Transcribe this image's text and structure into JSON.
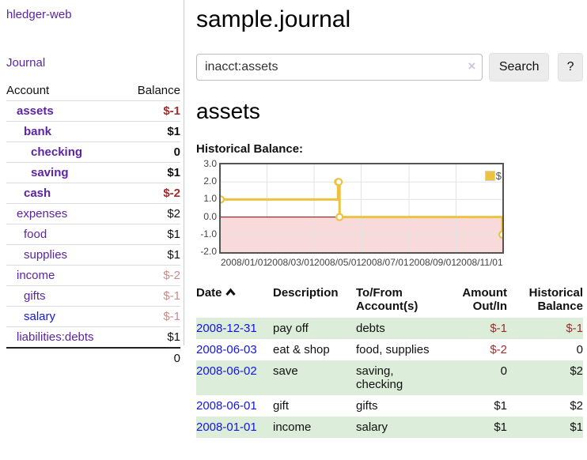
{
  "sidebar": {
    "app_title": "hledger-web",
    "journal_link": "Journal",
    "table": {
      "account_header": "Account",
      "balance_header": "Balance",
      "rows": [
        {
          "name": "assets",
          "balance": "$-1",
          "indent": 1,
          "bold": true,
          "neg": "neg"
        },
        {
          "name": "bank",
          "balance": "$1",
          "indent": 2,
          "bold": true
        },
        {
          "name": "checking",
          "balance": "0",
          "indent": 3,
          "bold": true
        },
        {
          "name": "saving",
          "balance": "$1",
          "indent": 3,
          "bold": true
        },
        {
          "name": "cash",
          "balance": "$-2",
          "indent": 2,
          "bold": true,
          "neg": "neg"
        },
        {
          "name": "expenses",
          "balance": "$2",
          "indent": 1
        },
        {
          "name": "food",
          "balance": "$1",
          "indent": 2
        },
        {
          "name": "supplies",
          "balance": "$1",
          "indent": 2
        },
        {
          "name": "income",
          "balance": "$-2",
          "indent": 1,
          "neg": "negsoft"
        },
        {
          "name": "gifts",
          "balance": "$-1",
          "indent": 2,
          "neg": "negsoft"
        },
        {
          "name": "salary",
          "balance": "$-1",
          "indent": 2,
          "neg": "negsoft",
          "blue": true
        },
        {
          "name": "liabilities:debts",
          "balance": "$1",
          "indent": 1
        }
      ],
      "total": "0"
    }
  },
  "header": {
    "title": "sample.journal"
  },
  "search": {
    "query": "inacct:assets",
    "clear_icon": "×",
    "button_label": "Search",
    "help_label": "?"
  },
  "account_page": {
    "title": "assets",
    "chart_label": "Historical Balance:"
  },
  "chart_data": {
    "type": "line",
    "line_style": "step",
    "title": "Historical Balance:",
    "series": [
      {
        "name": "$",
        "color": "#edc240",
        "points": [
          [
            "2008-01-01",
            1
          ],
          [
            "2008-06-01",
            2
          ],
          [
            "2008-06-02",
            2
          ],
          [
            "2008-06-03",
            0
          ],
          [
            "2008-12-31",
            -1
          ]
        ]
      }
    ],
    "x_range": [
      "2008-01-01",
      "2008-12-31"
    ],
    "x_ticks": [
      "2008/01/01",
      "2008/03/01",
      "2008/05/01",
      "2008/07/01",
      "2008/09/01",
      "2008/11/01"
    ],
    "y_ticks": [
      "3.0",
      "2.0",
      "1.0",
      "0.0",
      "-1.0",
      "-2.0"
    ],
    "ylim": [
      -2,
      3
    ],
    "grid": true,
    "legend_position": "top-right",
    "negative_region_color": "#f9dada",
    "zero_line_color": "#8b0000",
    "grid_color": "#e3e3e3"
  },
  "register": {
    "columns": {
      "date": "Date",
      "description": "Description",
      "accounts": "To/From Account(s)",
      "amount": "Amount Out/In",
      "balance": "Historical Balance"
    },
    "rows": [
      {
        "date": "2008-12-31",
        "description": "pay off",
        "accounts": "debts",
        "amount": "$-1",
        "amount_neg": true,
        "balance": "$-1",
        "balance_neg": true
      },
      {
        "date": "2008-06-03",
        "description": "eat & shop",
        "accounts": "food, supplies",
        "amount": "$-2",
        "amount_neg": true,
        "balance": "0",
        "balance_neg": false
      },
      {
        "date": "2008-06-02",
        "description": "save",
        "accounts": "saving, checking",
        "amount": "0",
        "amount_neg": false,
        "balance": "$2",
        "balance_neg": false
      },
      {
        "date": "2008-06-01",
        "description": "gift",
        "accounts": "gifts",
        "amount": "$1",
        "amount_neg": false,
        "balance": "$2",
        "balance_neg": false
      },
      {
        "date": "2008-01-01",
        "description": "income",
        "accounts": "salary",
        "amount": "$1",
        "amount_neg": false,
        "balance": "$1",
        "balance_neg": false
      }
    ]
  }
}
